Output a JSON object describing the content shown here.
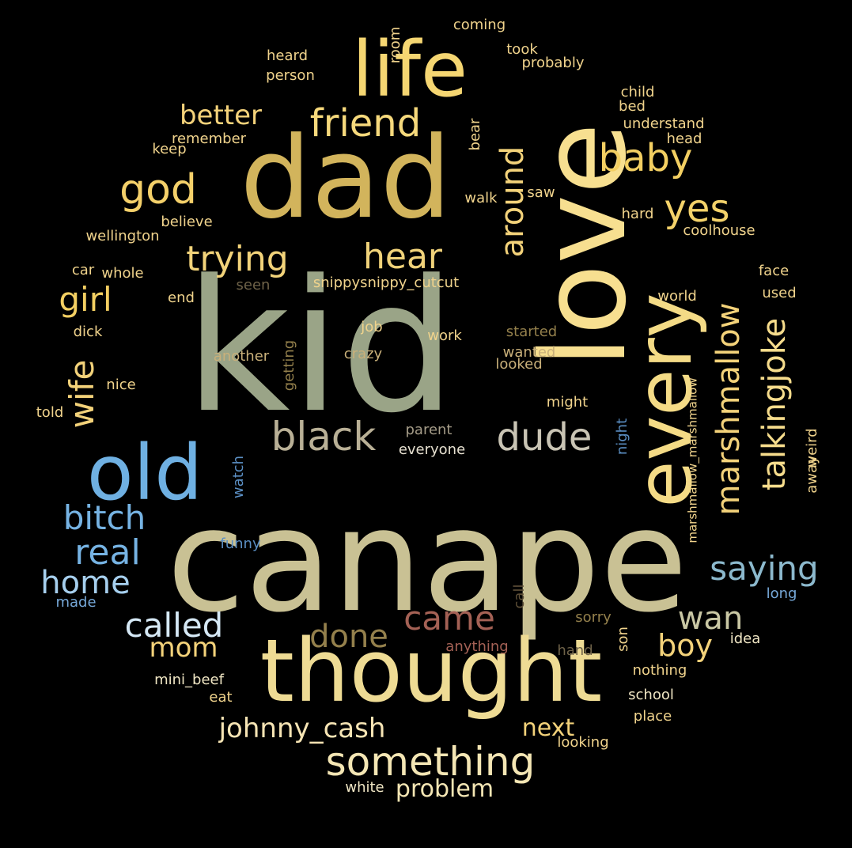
{
  "words": [
    {
      "text": "kid",
      "color": "#9aa487"
    },
    {
      "text": "canape",
      "color": "#c9c194"
    },
    {
      "text": "dad",
      "color": "#d2b45c"
    },
    {
      "text": "love",
      "color": "#f7df90"
    },
    {
      "text": "thought",
      "color": "#eedb94"
    },
    {
      "text": "life",
      "color": "#f5d672"
    },
    {
      "text": "old",
      "color": "#6fb0e2"
    },
    {
      "text": "every",
      "color": "#f4db86"
    },
    {
      "text": "friend",
      "color": "#f6d97c"
    },
    {
      "text": "god",
      "color": "#f4d06a"
    },
    {
      "text": "baby",
      "color": "#f3cf62"
    },
    {
      "text": "yes",
      "color": "#f4d26a"
    },
    {
      "text": "trying",
      "color": "#f2d37a"
    },
    {
      "text": "hear",
      "color": "#f0d27a"
    },
    {
      "text": "around",
      "color": "#f3d27a"
    },
    {
      "text": "better",
      "color": "#f4d27a"
    },
    {
      "text": "girl",
      "color": "#f3cf62"
    },
    {
      "text": "wife",
      "color": "#f3d27a"
    },
    {
      "text": "marshmallow",
      "color": "#f3d27a"
    },
    {
      "text": "talkingjoke",
      "color": "#f6dc8c"
    },
    {
      "text": "black",
      "color": "#b9b096"
    },
    {
      "text": "dude",
      "color": "#c9c4b4"
    },
    {
      "text": "bitch",
      "color": "#76b3e3"
    },
    {
      "text": "real",
      "color": "#76b3e3"
    },
    {
      "text": "home",
      "color": "#a6cfee"
    },
    {
      "text": "saying",
      "color": "#8cb9cd"
    },
    {
      "text": "called",
      "color": "#d5e8f5"
    },
    {
      "text": "came",
      "color": "#a46155"
    },
    {
      "text": "done",
      "color": "#94804c"
    },
    {
      "text": "wan",
      "color": "#c9c7a4"
    },
    {
      "text": "mom",
      "color": "#f3d27a"
    },
    {
      "text": "boy",
      "color": "#f3d27a"
    },
    {
      "text": "johnny_cash",
      "color": "#f6e4b4"
    },
    {
      "text": "next",
      "color": "#f3d27a"
    },
    {
      "text": "something",
      "color": "#f4e6b4"
    },
    {
      "text": "problem",
      "color": "#f4e6b4"
    },
    {
      "text": "coming",
      "color": "#f0d38c"
    },
    {
      "text": "took",
      "color": "#f0d38c"
    },
    {
      "text": "probably",
      "color": "#f0d38c"
    },
    {
      "text": "heard",
      "color": "#f0d38c"
    },
    {
      "text": "person",
      "color": "#f0d38c"
    },
    {
      "text": "room",
      "color": "#f0d38c"
    },
    {
      "text": "child",
      "color": "#f0d38c"
    },
    {
      "text": "bed",
      "color": "#f0d38c"
    },
    {
      "text": "understand",
      "color": "#f0d38c"
    },
    {
      "text": "head",
      "color": "#f0d38c"
    },
    {
      "text": "remember",
      "color": "#f0d38c"
    },
    {
      "text": "keep",
      "color": "#f0d38c"
    },
    {
      "text": "bear",
      "color": "#f0d38c"
    },
    {
      "text": "walk",
      "color": "#f0d38c"
    },
    {
      "text": "saw",
      "color": "#f0d38c"
    },
    {
      "text": "believe",
      "color": "#f0d38c"
    },
    {
      "text": "wellington",
      "color": "#f0d38c"
    },
    {
      "text": "hard",
      "color": "#f0d38c"
    },
    {
      "text": "coolhouse",
      "color": "#f0d38c"
    },
    {
      "text": "car",
      "color": "#f0d38c"
    },
    {
      "text": "whole",
      "color": "#f0d38c"
    },
    {
      "text": "seen",
      "color": "#6e6248"
    },
    {
      "text": "snippysnippy_cutcut",
      "color": "#f0d38c"
    },
    {
      "text": "face",
      "color": "#f0d38c"
    },
    {
      "text": "end",
      "color": "#f0d38c"
    },
    {
      "text": "used",
      "color": "#f0d38c"
    },
    {
      "text": "world",
      "color": "#f0d38c"
    },
    {
      "text": "dick",
      "color": "#f0d38c"
    },
    {
      "text": "job",
      "color": "#f0d38c"
    },
    {
      "text": "work",
      "color": "#f0d38c"
    },
    {
      "text": "started",
      "color": "#94804c"
    },
    {
      "text": "another",
      "color": "#c9b07a"
    },
    {
      "text": "crazy",
      "color": "#c9b07a"
    },
    {
      "text": "wanted",
      "color": "#c9b07a"
    },
    {
      "text": "looked",
      "color": "#c9b07a"
    },
    {
      "text": "getting",
      "color": "#94804c"
    },
    {
      "text": "nice",
      "color": "#f0d38c"
    },
    {
      "text": "marshmallow_marshmallow",
      "color": "#f0d38c"
    },
    {
      "text": "weird",
      "color": "#f0d38c"
    },
    {
      "text": "told",
      "color": "#f0d38c"
    },
    {
      "text": "might",
      "color": "#f0d38c"
    },
    {
      "text": "parent",
      "color": "#a59c88"
    },
    {
      "text": "everyone",
      "color": "#e6e0d0"
    },
    {
      "text": "night",
      "color": "#5b8fc4"
    },
    {
      "text": "watch",
      "color": "#5b8fc4"
    },
    {
      "text": "away",
      "color": "#f0d38c"
    },
    {
      "text": "funny",
      "color": "#5b8fc4"
    },
    {
      "text": "made",
      "color": "#76a8d8"
    },
    {
      "text": "call",
      "color": "#5f5038"
    },
    {
      "text": "long",
      "color": "#76a8d8"
    },
    {
      "text": "sorry",
      "color": "#94804c"
    },
    {
      "text": "idea",
      "color": "#f0e6c4"
    },
    {
      "text": "anything",
      "color": "#a46155"
    },
    {
      "text": "hand",
      "color": "#6e6248"
    },
    {
      "text": "son",
      "color": "#f0d38c"
    },
    {
      "text": "mini_beef",
      "color": "#f0e6c4"
    },
    {
      "text": "nothing",
      "color": "#f0d38c"
    },
    {
      "text": "eat",
      "color": "#f0d38c"
    },
    {
      "text": "school",
      "color": "#f0e6c4"
    },
    {
      "text": "place",
      "color": "#f0d38c"
    },
    {
      "text": "looking",
      "color": "#f0d38c"
    },
    {
      "text": "white",
      "color": "#f0e6c4"
    }
  ]
}
